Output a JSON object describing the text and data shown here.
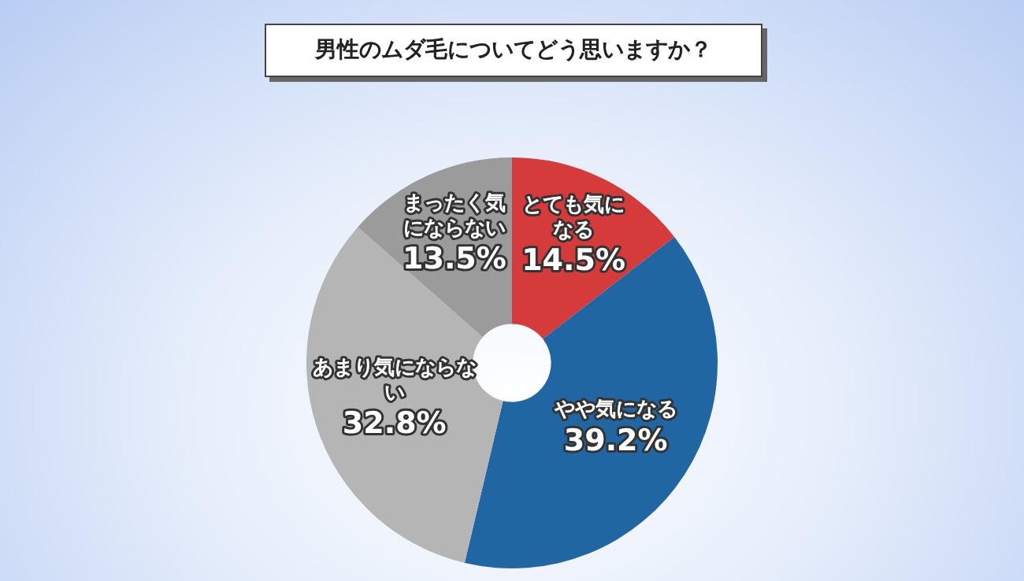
{
  "chart_data": {
    "type": "donut",
    "title": "男性のムダ毛についてどう思いますか？",
    "categories": [
      "とても気になる",
      "やや気になる",
      "あまり気にならない",
      "まったく気にならない"
    ],
    "values": [
      14.5,
      39.2,
      32.8,
      13.5
    ],
    "colors": [
      "#d53b3b",
      "#1f66a3",
      "#b5b5b5",
      "#9b9b9b"
    ],
    "value_labels": [
      "14.5%",
      "39.2%",
      "32.8%",
      "13.5%"
    ],
    "legend": false
  }
}
